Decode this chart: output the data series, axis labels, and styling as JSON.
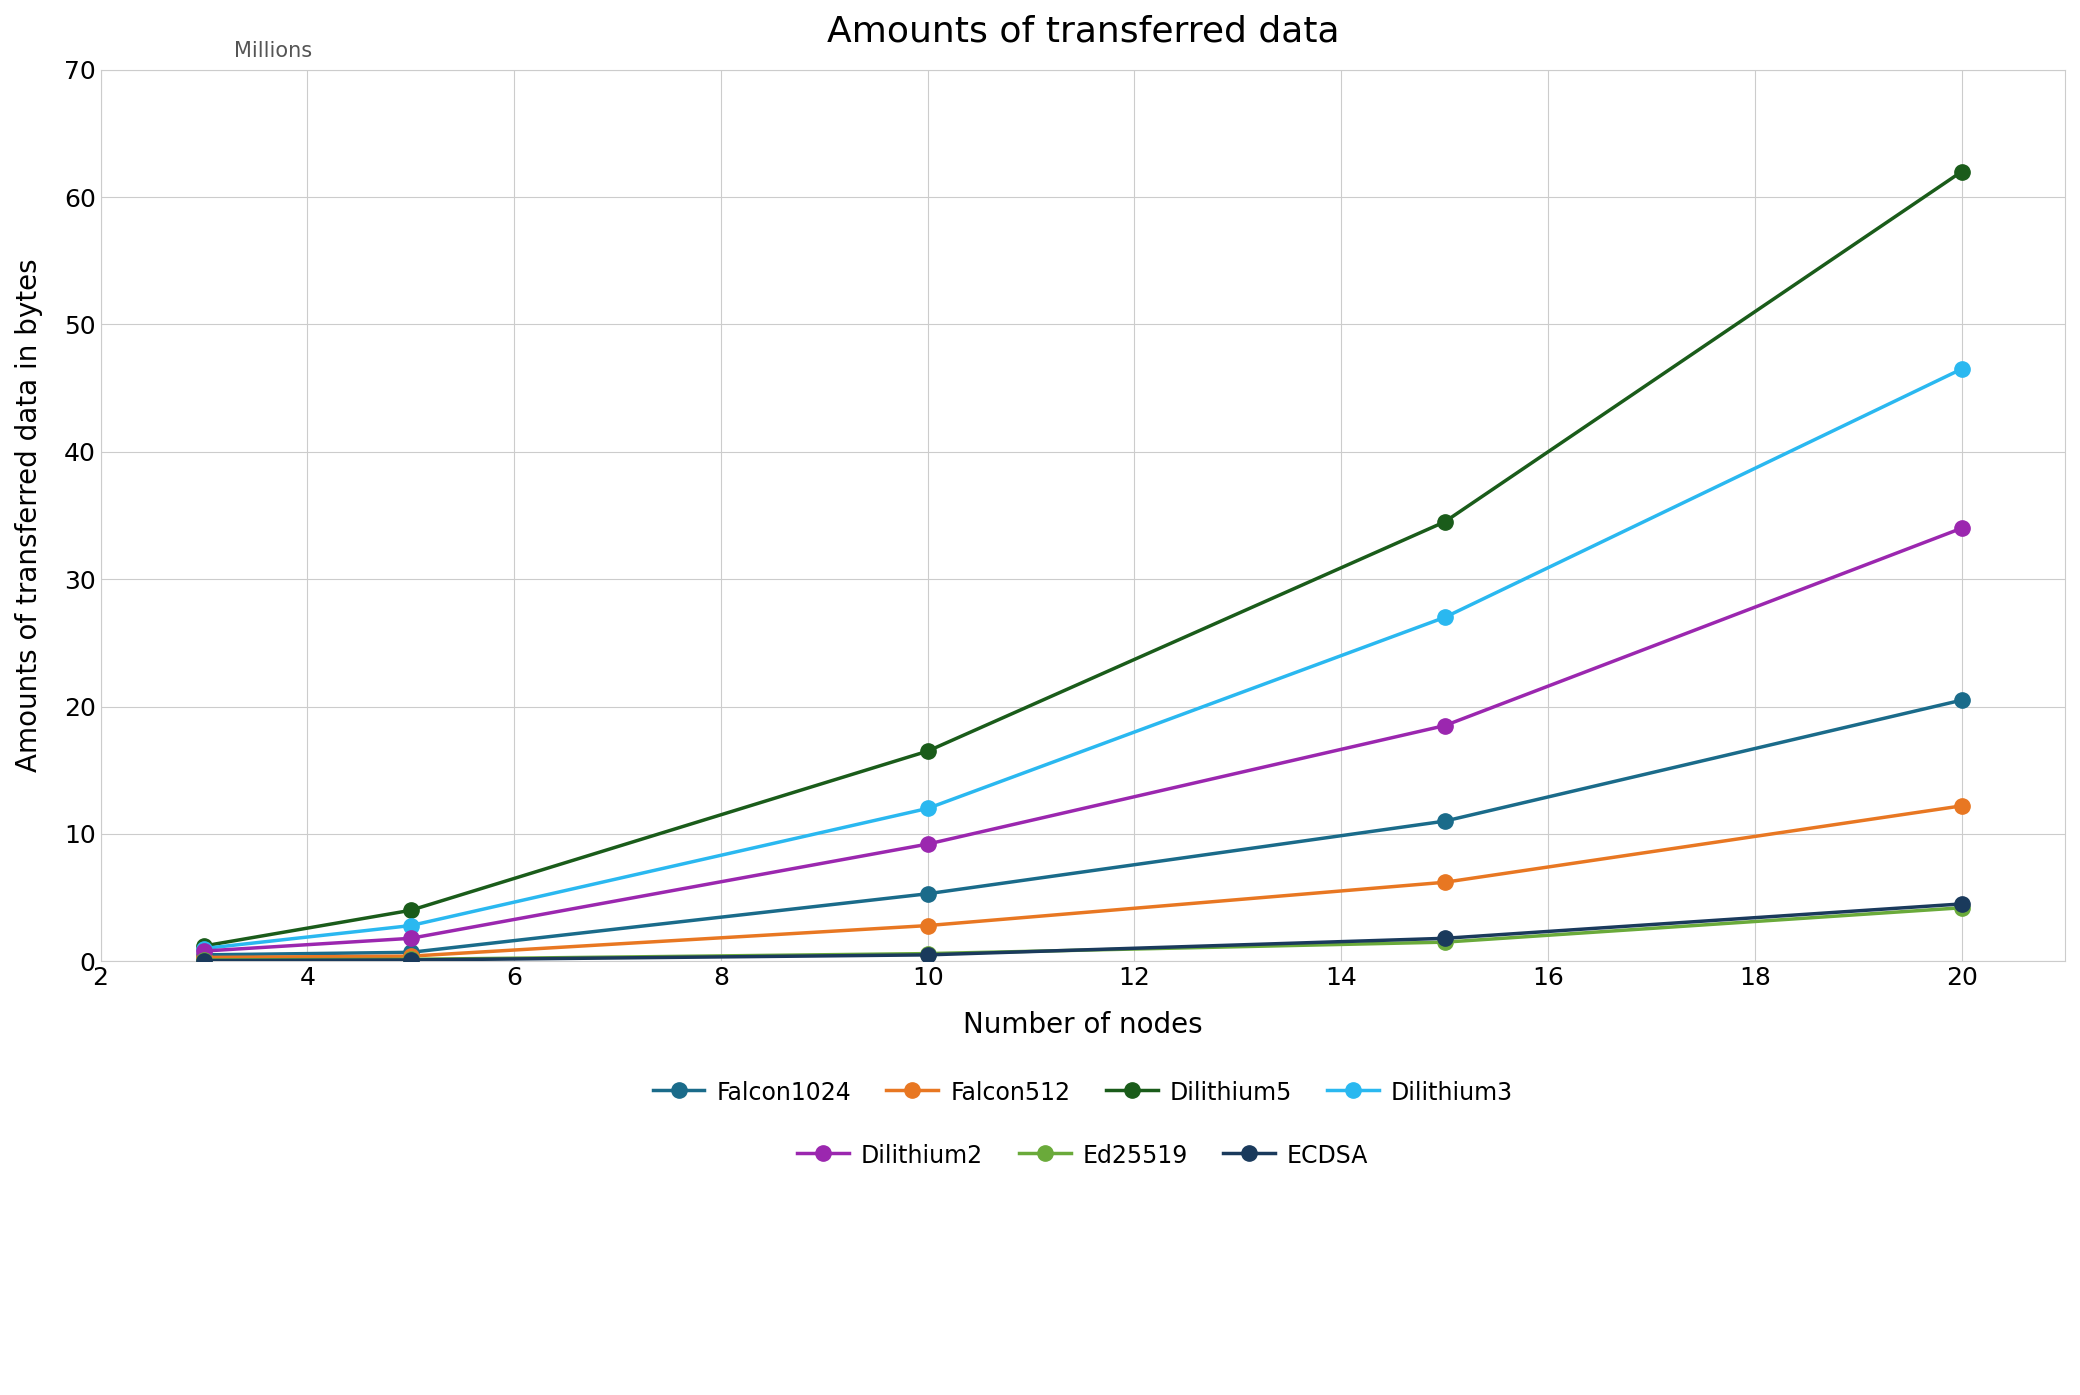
{
  "title": "Amounts of transferred data",
  "xlabel": "Number of nodes",
  "ylabel": "Amounts of transferred data in bytes",
  "ylabel2": "Millions",
  "x_nodes": [
    3,
    5,
    10,
    15,
    20
  ],
  "xlim": [
    2,
    21
  ],
  "ylim": [
    0,
    70
  ],
  "xticks": [
    2,
    4,
    6,
    8,
    10,
    12,
    14,
    16,
    18,
    20
  ],
  "yticks": [
    0,
    10,
    20,
    30,
    40,
    50,
    60,
    70
  ],
  "series": [
    {
      "label": "Falcon1024",
      "color": "#1a6b8a",
      "values": [
        0.5,
        0.7,
        5.3,
        11.0,
        20.5
      ],
      "marker": "o"
    },
    {
      "label": "Falcon512",
      "color": "#e87722",
      "values": [
        0.3,
        0.4,
        2.8,
        6.2,
        12.2
      ],
      "marker": "o"
    },
    {
      "label": "Dilithium5",
      "color": "#1a5c1a",
      "values": [
        1.2,
        4.0,
        16.5,
        34.5,
        62.0
      ],
      "marker": "o"
    },
    {
      "label": "Dilithium3",
      "color": "#2ab8f0",
      "values": [
        1.0,
        2.8,
        12.0,
        27.0,
        46.5
      ],
      "marker": "o"
    },
    {
      "label": "Dilithium2",
      "color": "#9b27af",
      "values": [
        0.8,
        1.8,
        9.2,
        18.5,
        34.0
      ],
      "marker": "o"
    },
    {
      "label": "Ed25519",
      "color": "#6aaa3a",
      "values": [
        0.1,
        0.15,
        0.6,
        1.5,
        4.2
      ],
      "marker": "o"
    },
    {
      "label": "ECDSA",
      "color": "#1a3a5c",
      "values": [
        0.05,
        0.1,
        0.5,
        1.8,
        4.5
      ],
      "marker": "o"
    }
  ],
  "title_fontsize": 26,
  "label_fontsize": 20,
  "tick_fontsize": 18,
  "legend_fontsize": 17,
  "millions_fontsize": 15,
  "background_color": "#ffffff",
  "grid_color": "#cccccc",
  "legend_row1": [
    "Falcon1024",
    "Falcon512",
    "Dilithium5",
    "Dilithium3"
  ],
  "legend_row2": [
    "Dilithium2",
    "Ed25519",
    "ECDSA"
  ]
}
